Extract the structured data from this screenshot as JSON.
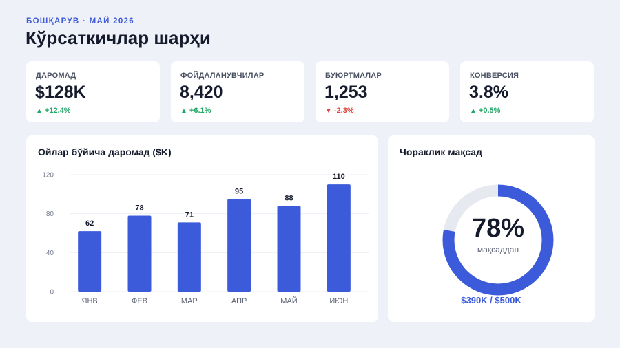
{
  "header": {
    "eyebrow": "БОШҚАРУВ · МАЙ 2026",
    "title": "Кўрсаткичлар шарҳи"
  },
  "kpis": [
    {
      "label": "ДАРОМАД",
      "value": "$128K",
      "delta": "+12.4%",
      "direction": "up"
    },
    {
      "label": "ФОЙДАЛАНУВЧИЛАР",
      "value": "8,420",
      "delta": "+6.1%",
      "direction": "up"
    },
    {
      "label": "БУЮРТМАЛАР",
      "value": "1,253",
      "delta": "-2.3%",
      "direction": "down"
    },
    {
      "label": "КОНВЕРСИЯ",
      "value": "3.8%",
      "delta": "+0.5%",
      "direction": "up"
    }
  ],
  "arrows": {
    "up": "▲",
    "down": "▼"
  },
  "revenue_panel": {
    "title": "Ойлар бўйича даромад ($K)"
  },
  "goal_panel": {
    "title": "Чораклик мақсад",
    "percent_label": "78%",
    "subtitle": "мақсаддан",
    "progress": 0.78,
    "footer": "$390K / $500K"
  },
  "colors": {
    "accent": "#3b5bdb",
    "positive": "#1fa765",
    "negative": "#e0413a",
    "track": "#e6e9ef"
  },
  "chart_data": {
    "type": "bar",
    "categories": [
      "ЯНВ",
      "ФЕВ",
      "МАР",
      "АПР",
      "МАЙ",
      "ИЮН"
    ],
    "values": [
      62,
      78,
      71,
      95,
      88,
      110
    ],
    "title": "Ойлар бўйича даромад ($K)",
    "xlabel": "",
    "ylabel": "",
    "ylim": [
      0,
      120
    ],
    "yticks": [
      0,
      40,
      80,
      120
    ],
    "data_labels": true,
    "grid": true
  }
}
